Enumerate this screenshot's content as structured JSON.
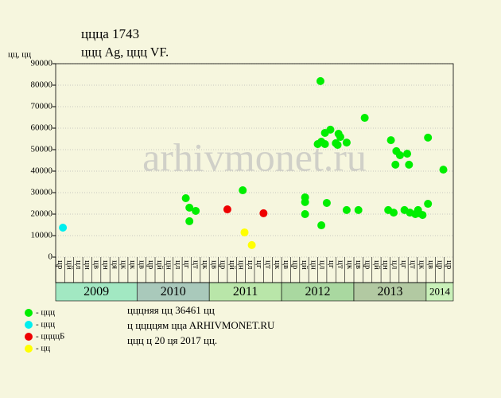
{
  "chart_data": {
    "type": "scatter",
    "title": "ццца 1743",
    "subtitle": "ццц Ag, ццц VF.",
    "y_label": "цц, цц",
    "watermark": "arhivmonet.ru",
    "notes": [
      "цццняя цц 36461 цц",
      "ц ццццям ццa ARHIVMONET.RU",
      "ццц ц 20 ця 2017 цц."
    ],
    "categories": [
      "цр",
      "цй",
      "цл",
      "цн",
      "цв",
      "цн",
      "ця",
      "цк",
      "цк",
      "цв",
      "цр",
      "цй",
      "цн",
      "цл",
      "цг",
      "цт",
      "цк",
      "цв",
      "цр",
      "цй",
      "цн",
      "цл",
      "цг",
      "цт",
      "цк",
      "цв",
      "цр",
      "цй",
      "цн",
      "цл",
      "цг",
      "цт",
      "цк",
      "цв",
      "цр",
      "цй",
      "цн",
      "цл",
      "цг",
      "цт",
      "цк",
      "цв",
      "цр",
      "цр"
    ],
    "year_groups": [
      {
        "label": "2009",
        "from": 0,
        "to": 9,
        "color": "#a2e8c2"
      },
      {
        "label": "2010",
        "from": 9,
        "to": 17,
        "color": "#a9c9bb"
      },
      {
        "label": "2011",
        "from": 17,
        "to": 25,
        "color": "#b9e6a9"
      },
      {
        "label": "2012",
        "from": 25,
        "to": 33,
        "color": "#a9d8a0"
      },
      {
        "label": "2013",
        "from": 33,
        "to": 41,
        "color": "#b2c9a2"
      },
      {
        "label": "2014",
        "from": 41,
        "to": 44,
        "color": "#c9f0b9"
      }
    ],
    "xlim": [
      0,
      44
    ],
    "ylim": [
      0,
      90000
    ],
    "yticks": [
      0,
      10000,
      20000,
      30000,
      40000,
      50000,
      60000,
      70000,
      80000,
      90000
    ],
    "grid": true,
    "series": [
      {
        "name": "- ццц",
        "color": "#00ee00",
        "x": [
          14.4,
          14.8,
          15.5,
          14.8,
          20.7,
          27.6,
          27.6,
          27.6,
          29.3,
          29.4,
          29.0,
          29.4,
          29.8,
          29.8,
          30.4,
          30.0,
          31.0,
          31.3,
          31.2,
          31.5,
          32.2,
          32.2,
          33.5,
          34.2,
          36.8,
          37.1,
          37.4,
          37.7,
          37.6,
          38.1,
          38.6,
          38.9,
          39.1,
          39.2,
          39.8,
          40.1,
          40.2,
          40.6,
          41.2,
          41.2,
          42.9
        ],
        "values": [
          27400,
          23000,
          21500,
          16700,
          31100,
          27800,
          25600,
          20000,
          81900,
          14800,
          52600,
          53700,
          57800,
          52600,
          59300,
          25200,
          53000,
          57400,
          52200,
          55900,
          53300,
          21900,
          21900,
          64800,
          21900,
          54400,
          20700,
          49300,
          43000,
          47400,
          21900,
          48100,
          43000,
          20700,
          20000,
          21900,
          20400,
          19600,
          24800,
          55600,
          40700
        ]
      },
      {
        "name": "- ццц",
        "color": "#00eeee",
        "x": [
          0.8
        ],
        "values": [
          13700
        ]
      },
      {
        "name": "- ццццБ",
        "color": "#ee0000",
        "x": [
          19.0,
          23.0
        ],
        "values": [
          22200,
          20400
        ]
      },
      {
        "name": "- цц",
        "color": "#ffff00",
        "x": [
          20.9,
          21.7
        ],
        "values": [
          11500,
          5600
        ]
      }
    ]
  }
}
